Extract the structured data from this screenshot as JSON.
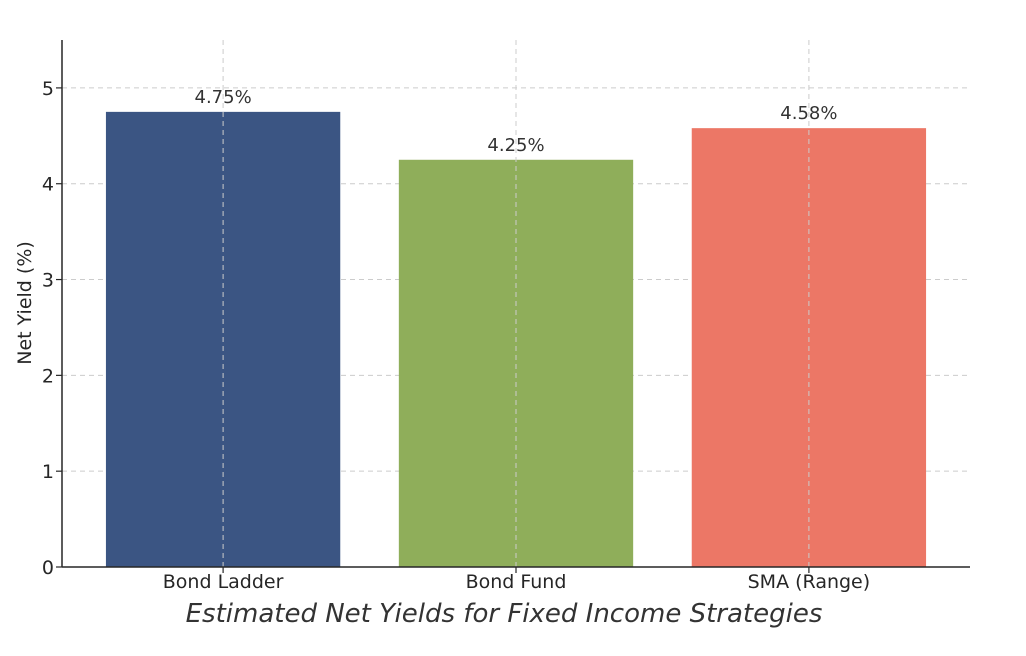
{
  "chart_data": {
    "type": "bar",
    "title": "Estimated Net Yields for Fixed Income Strategies",
    "xlabel": "",
    "ylabel": "Net Yield (%)",
    "categories": [
      "Bond Ladder",
      "Bond Fund",
      "SMA (Range)"
    ],
    "values": [
      4.75,
      4.25,
      4.58
    ],
    "value_labels": [
      "4.75%",
      "4.25%",
      "4.58%"
    ],
    "colors": [
      "#3b5583",
      "#8fae5a",
      "#ec7766"
    ],
    "ylim": [
      0,
      5.5
    ],
    "yticks": [
      0,
      1,
      2,
      3,
      4,
      5
    ],
    "ytick_labels": [
      "0",
      "1",
      "2",
      "3",
      "4",
      "5"
    ],
    "grid": true,
    "legend": "none"
  }
}
